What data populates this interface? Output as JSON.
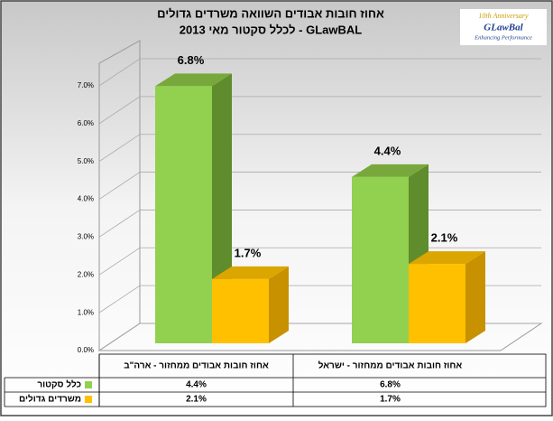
{
  "chart_data": {
    "type": "bar3d",
    "title": "אחוז חובות אבודים השוואה משרדים גדולים",
    "subtitle": "לכלל סקטור מאי 2013 - GLawBAL",
    "logo": {
      "line1": "10th Anniversary",
      "line2": "GLawBal",
      "line3": "Enhancing Performance"
    },
    "categories": [
      "אחוז חובות אבודים ממחזור - ישראל",
      "אחוז חובות אבודים ממחזור - ארה\"ב"
    ],
    "series": [
      {
        "name": "כלל סקטור",
        "color": "#92d050",
        "side": "#5f8c2c",
        "top": "#78a83c",
        "values": [
          6.8,
          4.4
        ],
        "value_labels": [
          "6.8%",
          "4.4%"
        ]
      },
      {
        "name": "משרדים גדולים",
        "color": "#ffc000",
        "side": "#c79100",
        "top": "#dba600",
        "values": [
          1.7,
          2.1
        ],
        "value_labels": [
          "1.7%",
          "2.1%"
        ]
      }
    ],
    "ylim": [
      0,
      7
    ],
    "yticks": [
      {
        "value": 0,
        "label": "0.0%"
      },
      {
        "value": 1,
        "label": "1.0%"
      },
      {
        "value": 2,
        "label": "2.0%"
      },
      {
        "value": 3,
        "label": "3.0%"
      },
      {
        "value": 4,
        "label": "4.0%"
      },
      {
        "value": 5,
        "label": "5.0%"
      },
      {
        "value": 6,
        "label": "6.0%"
      },
      {
        "value": 7,
        "label": "7.0%"
      }
    ],
    "grid": true
  }
}
